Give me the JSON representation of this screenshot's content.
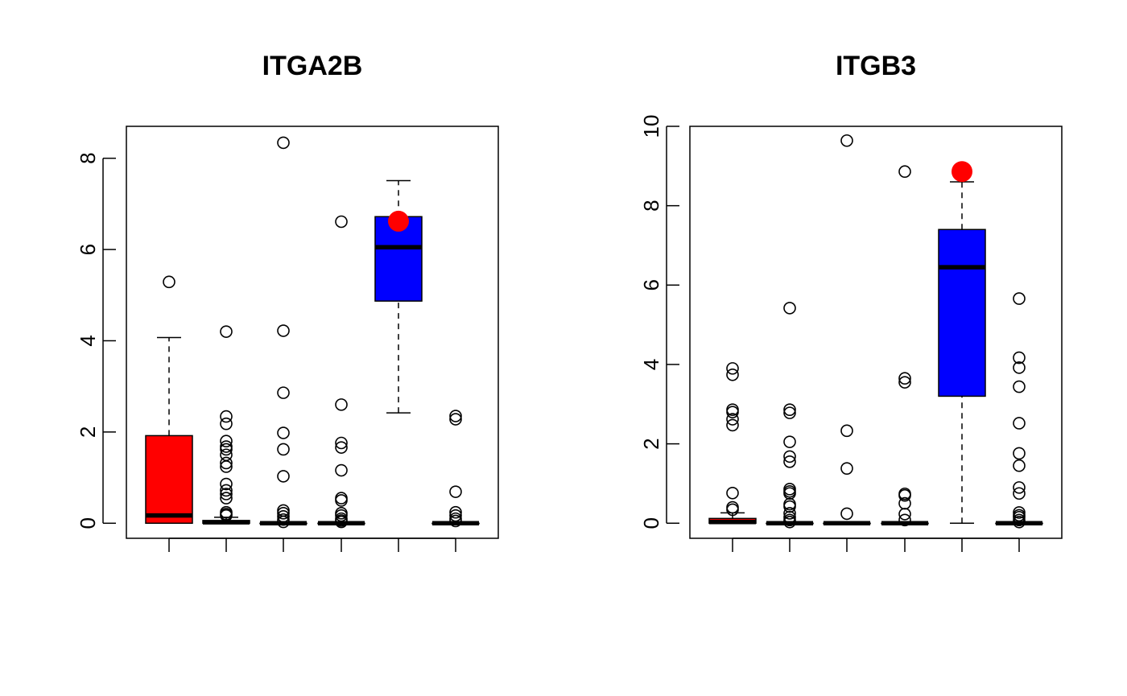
{
  "chart_data": [
    {
      "type": "box",
      "title": "ITGA2B",
      "xlabel": "",
      "ylabel": "",
      "ylim": [
        -0.33,
        8.7
      ],
      "yticks": [
        0,
        2,
        4,
        6,
        8
      ],
      "x_ticks_labeled": false,
      "grid": false,
      "highlight_color": "#ff0000",
      "groups": [
        {
          "box_color": "#ff0000",
          "whisker_low": 0,
          "q1": 0,
          "median": 0.17,
          "q3": 1.92,
          "whisker_high": 4.07,
          "outliers": [
            5.29
          ]
        },
        {
          "box_color": "#ffffff",
          "whisker_low": 0,
          "q1": 0,
          "median": 0.02,
          "q3": 0.06,
          "whisker_high": 0.13,
          "outliers": [
            4.2,
            2.34,
            2.18,
            1.8,
            1.68,
            1.62,
            1.5,
            1.32,
            1.24,
            0.86,
            0.72,
            0.64,
            0.55,
            0.24,
            0.2,
            0.17
          ]
        },
        {
          "box_color": "#ffffff",
          "whisker_low": 0,
          "q1": 0,
          "median": 0,
          "q3": 0,
          "whisker_high": 0,
          "outliers": [
            8.34,
            4.22,
            2.86,
            1.98,
            1.62,
            1.03,
            0.28,
            0.22,
            0.15,
            0.08,
            0.03
          ]
        },
        {
          "box_color": "#ffffff",
          "whisker_low": 0,
          "q1": 0,
          "median": 0,
          "q3": 0,
          "whisker_high": 0,
          "outliers": [
            6.61,
            2.6,
            1.76,
            1.66,
            1.16,
            0.55,
            0.5,
            0.22,
            0.17,
            0.1,
            0.06,
            0.03
          ]
        },
        {
          "box_color": "#0000ff",
          "whisker_low": 2.42,
          "q1": 4.87,
          "median": 6.05,
          "q3": 6.72,
          "whisker_high": 7.51,
          "outliers": [],
          "highlight": 6.62
        },
        {
          "box_color": "#ffffff",
          "whisker_low": 0,
          "q1": 0,
          "median": 0,
          "q3": 0,
          "whisker_high": 0,
          "outliers": [
            2.35,
            2.28,
            0.69,
            0.24,
            0.17,
            0.1,
            0.05
          ]
        }
      ]
    },
    {
      "type": "box",
      "title": "ITGB3",
      "xlabel": "",
      "ylabel": "",
      "ylim": [
        -0.38,
        10.0
      ],
      "yticks": [
        0,
        2,
        4,
        6,
        8,
        10
      ],
      "x_ticks_labeled": false,
      "grid": false,
      "highlight_color": "#ff0000",
      "groups": [
        {
          "box_color": "#ff0000",
          "whisker_low": 0,
          "q1": 0,
          "median": 0.03,
          "q3": 0.12,
          "whisker_high": 0.26,
          "outliers": [
            3.9,
            3.74,
            2.86,
            2.8,
            2.62,
            2.47,
            0.76,
            0.4,
            0.34
          ]
        },
        {
          "box_color": "#ffffff",
          "whisker_low": 0,
          "q1": 0,
          "median": 0,
          "q3": 0,
          "whisker_high": 0,
          "outliers": [
            5.42,
            2.86,
            2.78,
            2.05,
            1.68,
            1.55,
            0.86,
            0.8,
            0.75,
            0.48,
            0.42,
            0.25,
            0.15,
            0.08,
            0.03
          ]
        },
        {
          "box_color": "#ffffff",
          "whisker_low": 0,
          "q1": 0,
          "median": 0,
          "q3": 0,
          "whisker_high": 0,
          "outliers": [
            9.64,
            2.33,
            1.38,
            0.24
          ]
        },
        {
          "box_color": "#ffffff",
          "whisker_low": 0,
          "q1": 0,
          "median": 0,
          "q3": 0,
          "whisker_high": 0,
          "outliers": [
            8.86,
            3.65,
            3.55,
            0.74,
            0.7,
            0.5,
            0.23,
            0.08
          ]
        },
        {
          "box_color": "#0000ff",
          "whisker_low": 0,
          "q1": 3.2,
          "median": 6.45,
          "q3": 7.4,
          "whisker_high": 8.6,
          "outliers": [],
          "highlight": 8.86
        },
        {
          "box_color": "#ffffff",
          "whisker_low": 0,
          "q1": 0,
          "median": 0,
          "q3": 0,
          "whisker_high": 0,
          "outliers": [
            5.66,
            4.17,
            3.92,
            3.44,
            2.52,
            1.76,
            1.45,
            0.9,
            0.75,
            0.27,
            0.2,
            0.15,
            0.08,
            0.03
          ]
        }
      ]
    }
  ]
}
